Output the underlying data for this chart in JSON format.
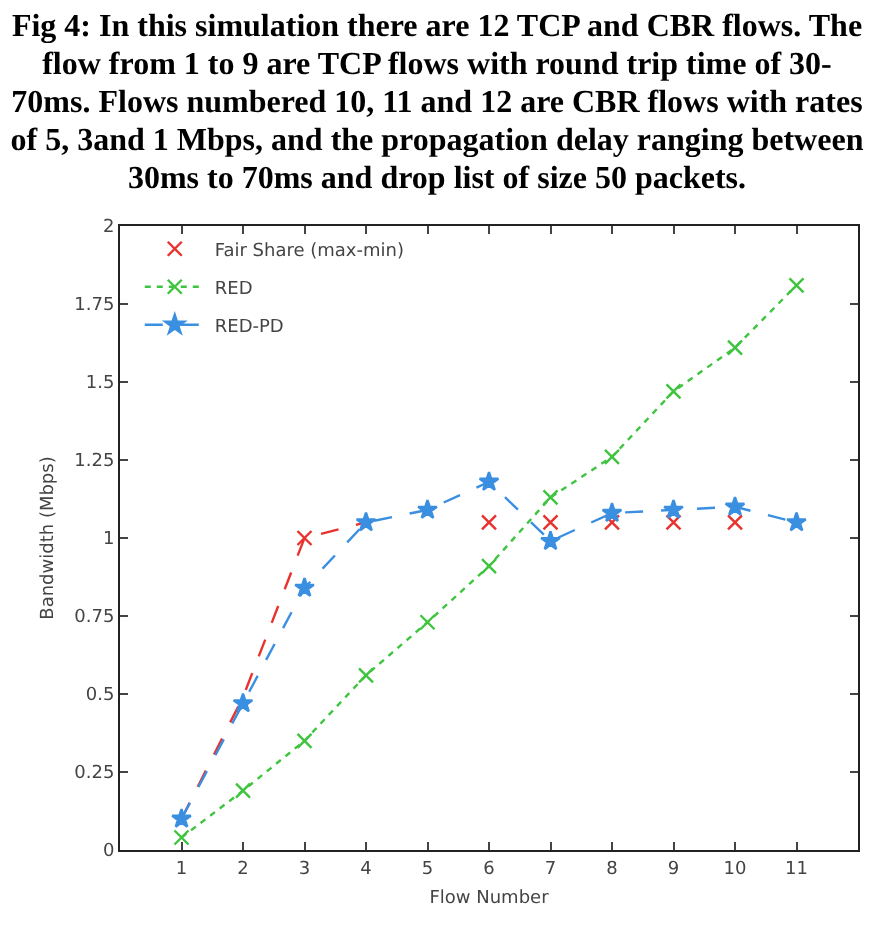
{
  "chart_data": {
    "type": "line",
    "title": "Fig 4: In this simulation there are 12 TCP and CBR flows. The flow from 1 to 9 are TCP flows with round trip time of 30-70ms. Flows numbered 10, 11 and 12 are CBR flows with rates of 5, 3and 1 Mbps, and the propagation delay ranging between 30ms to 70ms and drop list of size 50 packets.",
    "xlabel": "Flow Number",
    "ylabel": "Bandwidth (Mbps)",
    "x": [
      1,
      2,
      3,
      4,
      5,
      6,
      7,
      8,
      9,
      10,
      11
    ],
    "series": [
      {
        "name": "Fair Share (max-min)",
        "type": "scatter",
        "color": "#e8322e",
        "marker": "cross",
        "values": [
          null,
          null,
          1.0,
          null,
          null,
          1.05,
          1.05,
          1.05,
          1.05,
          1.05,
          null
        ]
      },
      {
        "color": "#e8322e",
        "marker": "none",
        "line_style": "dashed",
        "x": [
          1,
          2,
          3,
          4
        ],
        "values": [
          0.1,
          0.49,
          1.0,
          1.05
        ]
      },
      {
        "name": "RED",
        "color": "#3ec43e",
        "marker": "cross",
        "line_style": "dotted",
        "values": [
          0.04,
          0.19,
          0.35,
          0.56,
          0.73,
          0.91,
          1.13,
          1.26,
          1.47,
          1.61,
          1.81
        ]
      },
      {
        "name": "RED-PD",
        "color": "#3a8fe0",
        "marker": "star",
        "line_style": "dashed",
        "values": [
          0.1,
          0.47,
          0.84,
          1.05,
          1.09,
          1.18,
          0.99,
          1.08,
          1.09,
          1.1,
          1.05
        ]
      }
    ],
    "xlim": [
      0,
      12
    ],
    "xticks": [
      1,
      2,
      3,
      4,
      5,
      6,
      7,
      8,
      9,
      10,
      11
    ],
    "ylim": [
      0,
      2
    ],
    "yticks": [
      0,
      0.25,
      0.5,
      0.75,
      1,
      1.25,
      1.5,
      1.75,
      2
    ],
    "grid": false,
    "legend": "top left"
  }
}
